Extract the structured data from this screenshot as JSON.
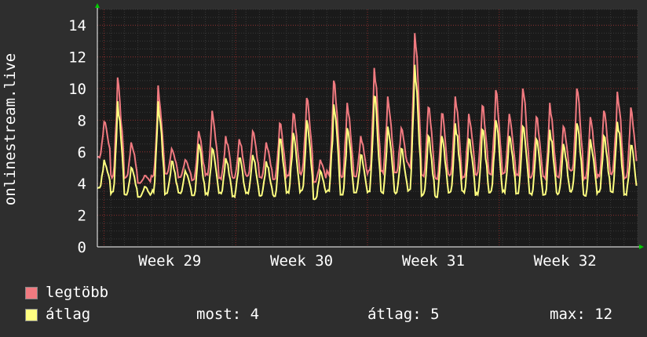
{
  "chart_data": {
    "type": "line",
    "ylabel": "onlinestream.live",
    "ylim": [
      0,
      15
    ],
    "yticks": [
      0,
      2,
      4,
      6,
      8,
      10,
      12,
      14
    ],
    "xticks": [
      {
        "label": "Week 29",
        "pos": 0.167
      },
      {
        "label": "Week 30",
        "pos": 0.423
      },
      {
        "label": "Week 31",
        "pos": 0.682
      },
      {
        "label": "Week 32",
        "pos": 0.941
      }
    ],
    "x_range_weeks": [
      28.45,
      32.55
    ],
    "grid": true,
    "series": [
      {
        "name": "legtöbb",
        "color": "#f07a80",
        "daily_peaks": [
          7.9,
          10.7,
          6.6,
          4.5,
          10.2,
          6.2,
          5.5,
          7.3,
          8.6,
          7.0,
          6.8,
          7.3,
          6.6,
          7.8,
          8.4,
          9.4,
          5.5,
          10.5,
          9.1,
          7.0,
          11.3,
          9.5,
          7.5,
          13.5,
          8.8,
          8.4,
          9.5,
          8.4,
          8.9,
          9.9,
          8.4,
          10.0,
          8.2,
          9.1,
          7.6,
          10.0,
          8.2,
          8.6,
          9.8,
          8.8
        ],
        "daily_mins": [
          5.5,
          4.0,
          4.2,
          4.0,
          4.0,
          4.5,
          4.3,
          4.0,
          4.2,
          4.1,
          4.2,
          4.3,
          4.2,
          4.0,
          4.1,
          4.3,
          4.0,
          4.2,
          4.1,
          4.3,
          4.2,
          4.3,
          4.5,
          4.4,
          4.2,
          4.0,
          4.2,
          4.1,
          4.3,
          4.2,
          4.4,
          4.2,
          4.1,
          4.0,
          4.2,
          4.3,
          4.0,
          4.1,
          4.3,
          4.0
        ]
      },
      {
        "name": "átlag",
        "color": "#ffff80",
        "daily_peaks": [
          5.5,
          9.2,
          5.0,
          3.8,
          9.2,
          5.4,
          4.8,
          6.5,
          6.2,
          5.6,
          5.6,
          5.8,
          5.4,
          6.8,
          7.2,
          8.0,
          4.8,
          9.0,
          7.5,
          5.8,
          9.5,
          7.6,
          6.2,
          11.5,
          7.0,
          7.0,
          7.8,
          6.8,
          7.4,
          8.0,
          7.0,
          7.6,
          6.8,
          7.4,
          6.5,
          7.8,
          6.8,
          7.0,
          7.9,
          6.4
        ],
        "daily_mins": [
          3.6,
          3.0,
          3.2,
          3.1,
          3.0,
          3.2,
          3.3,
          2.9,
          3.1,
          3.2,
          3.0,
          3.2,
          3.1,
          3.0,
          3.2,
          3.1,
          2.9,
          3.1,
          3.0,
          3.2,
          3.0,
          3.1,
          3.2,
          3.1,
          3.0,
          2.9,
          3.1,
          3.2,
          3.0,
          3.1,
          3.2,
          3.1,
          3.0,
          2.9,
          3.1,
          3.2,
          3.0,
          3.1,
          3.2,
          3.1
        ]
      }
    ]
  },
  "legend": {
    "max_label": "legtöbb",
    "avg_label": "átlag",
    "now_text": "most: 4",
    "avg_text": "átlag: 5",
    "max_text": "max: 12"
  }
}
